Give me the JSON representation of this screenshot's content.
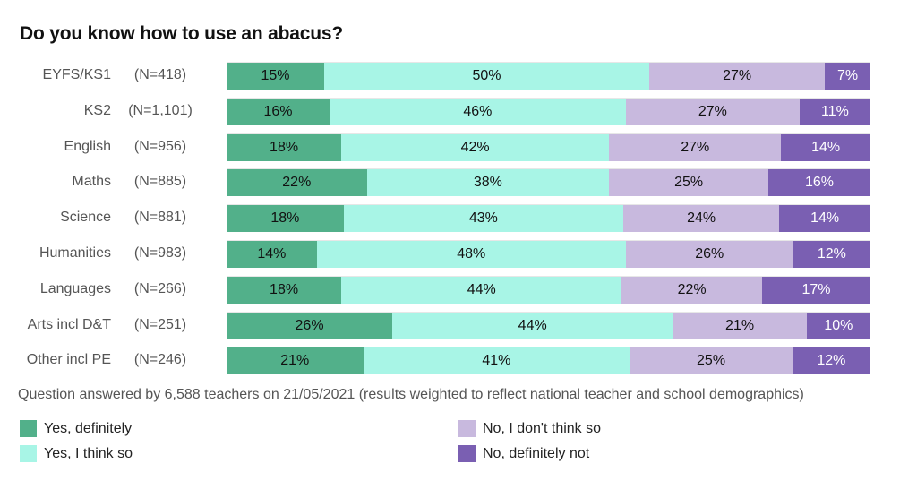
{
  "chart_data": {
    "type": "bar",
    "orientation": "horizontal-stacked-100",
    "title": "Do you know how to use an abacus?",
    "categories": [
      "EYFS/KS1",
      "KS2",
      "English",
      "Maths",
      "Science",
      "Humanities",
      "Languages",
      "Arts incl D&T",
      "Other incl PE"
    ],
    "sample_sizes": [
      "(N=418)",
      "(N=1,101)",
      "(N=956)",
      "(N=885)",
      "(N=881)",
      "(N=983)",
      "(N=266)",
      "(N=251)",
      "(N=246)"
    ],
    "series": [
      {
        "name": "Yes, definitely",
        "color": "#52b08a",
        "values": [
          15,
          16,
          18,
          22,
          18,
          14,
          18,
          26,
          21
        ]
      },
      {
        "name": "Yes, I think so",
        "color": "#a8f5e6",
        "values": [
          50,
          46,
          42,
          38,
          43,
          48,
          44,
          44,
          41
        ]
      },
      {
        "name": "No, I don't think so",
        "color": "#c8b9de",
        "values": [
          27,
          27,
          27,
          25,
          24,
          26,
          22,
          21,
          25
        ]
      },
      {
        "name": "No, definitely not",
        "color": "#7a5fb2",
        "values": [
          7,
          11,
          14,
          16,
          14,
          12,
          17,
          10,
          12
        ]
      }
    ],
    "value_suffix": "%",
    "footnote": "Question answered by 6,588 teachers on 21/05/2021 (results weighted to reflect national teacher and school demographics)",
    "legend_position": "bottom"
  }
}
